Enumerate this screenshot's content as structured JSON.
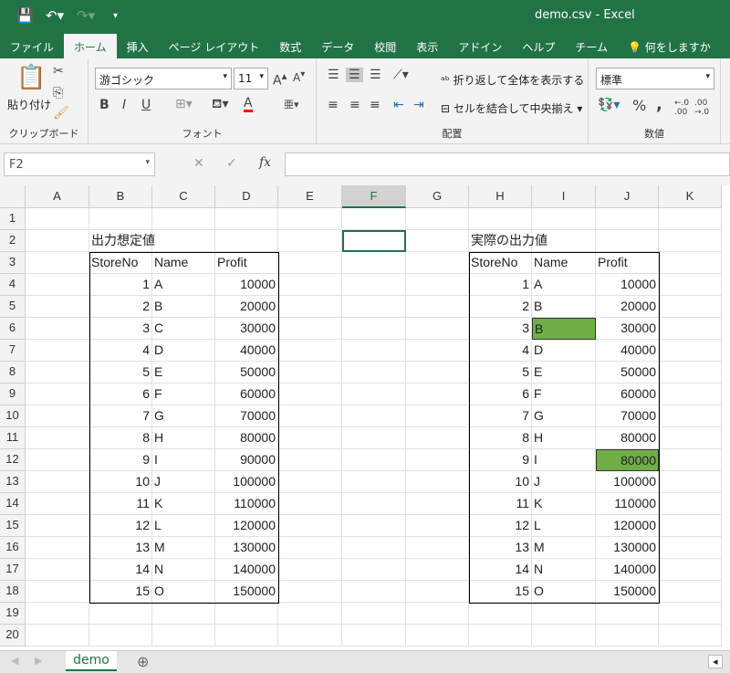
{
  "window": {
    "title": "demo.csv  -  Excel"
  },
  "quick_access": {
    "save_icon": "save-icon",
    "undo_icon": "undo-icon",
    "redo_icon": "redo-icon",
    "customize_icon": "chevron-down-icon"
  },
  "tabs": [
    {
      "label": "ファイル"
    },
    {
      "label": "ホーム",
      "active": true
    },
    {
      "label": "挿入"
    },
    {
      "label": "ページ レイアウト"
    },
    {
      "label": "数式"
    },
    {
      "label": "データ"
    },
    {
      "label": "校閲"
    },
    {
      "label": "表示"
    },
    {
      "label": "アドイン"
    },
    {
      "label": "ヘルプ"
    },
    {
      "label": "チーム"
    },
    {
      "label": "💡 何をしますか"
    }
  ],
  "ribbon": {
    "clipboard": {
      "label": "クリップボード",
      "paste": "貼り付け"
    },
    "font": {
      "label": "フォント",
      "font_name": "游ゴシック",
      "font_size": "11",
      "bold": "B",
      "italic": "I",
      "underline": "U",
      "font_color": "#ff0000"
    },
    "alignment": {
      "label": "配置",
      "wrap_text": "折り返して全体を表示する",
      "merge_center": "セルを結合して中央揃え"
    },
    "number": {
      "label": "数値",
      "format": "標準",
      "percent": "%",
      "comma": ","
    }
  },
  "formula_bar": {
    "name_box": "F2",
    "cancel": "✕",
    "enter": "✓",
    "fx": "fx",
    "value": ""
  },
  "columns": [
    "A",
    "B",
    "C",
    "D",
    "E",
    "F",
    "G",
    "H",
    "I",
    "J",
    "K"
  ],
  "selected_column": "F",
  "selected_cell": "F2",
  "rows": [
    "1",
    "2",
    "3",
    "4",
    "5",
    "6",
    "7",
    "8",
    "9",
    "10",
    "11",
    "12",
    "13",
    "14",
    "15",
    "16",
    "17",
    "18",
    "19",
    "20"
  ],
  "highlight_color": "#70ad47",
  "expected": {
    "title": "出力想定値",
    "headers": [
      "StoreNo",
      "Name",
      "Profit"
    ],
    "rows": [
      [
        1,
        "A",
        10000
      ],
      [
        2,
        "B",
        20000
      ],
      [
        3,
        "C",
        30000
      ],
      [
        4,
        "D",
        40000
      ],
      [
        5,
        "E",
        50000
      ],
      [
        6,
        "F",
        60000
      ],
      [
        7,
        "G",
        70000
      ],
      [
        8,
        "H",
        80000
      ],
      [
        9,
        "I",
        90000
      ],
      [
        10,
        "J",
        100000
      ],
      [
        11,
        "K",
        110000
      ],
      [
        12,
        "L",
        120000
      ],
      [
        13,
        "M",
        130000
      ],
      [
        14,
        "N",
        140000
      ],
      [
        15,
        "O",
        150000
      ]
    ]
  },
  "actual": {
    "title": "実際の出力値",
    "headers": [
      "StoreNo",
      "Name",
      "Profit"
    ],
    "rows": [
      [
        1,
        "A",
        10000
      ],
      [
        2,
        "B",
        20000
      ],
      [
        3,
        "B",
        30000
      ],
      [
        4,
        "D",
        40000
      ],
      [
        5,
        "E",
        50000
      ],
      [
        6,
        "F",
        60000
      ],
      [
        7,
        "G",
        70000
      ],
      [
        8,
        "H",
        80000
      ],
      [
        9,
        "I",
        80000
      ],
      [
        10,
        "J",
        100000
      ],
      [
        11,
        "K",
        110000
      ],
      [
        12,
        "L",
        120000
      ],
      [
        13,
        "M",
        130000
      ],
      [
        14,
        "N",
        140000
      ],
      [
        15,
        "O",
        150000
      ]
    ],
    "highlighted_cells": [
      "I6",
      "J12"
    ]
  },
  "sheets": [
    {
      "name": "demo",
      "active": true
    }
  ],
  "add_sheet": "⊕"
}
